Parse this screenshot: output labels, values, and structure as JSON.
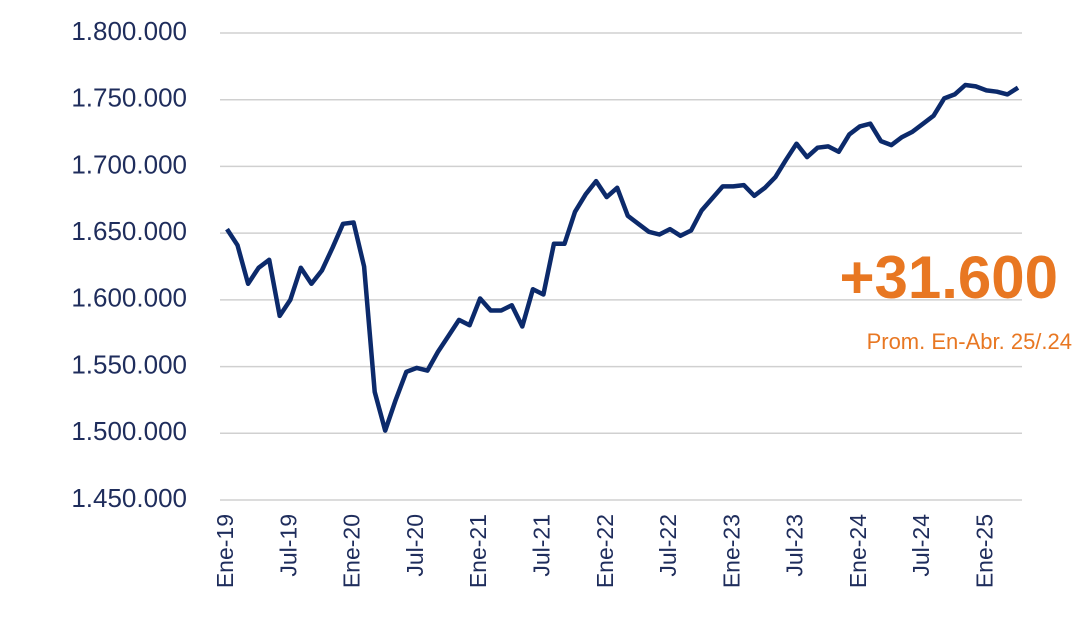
{
  "chart_data": {
    "type": "line",
    "categories": [
      "Ene-19",
      null,
      null,
      null,
      null,
      null,
      "Jul-19",
      null,
      null,
      null,
      null,
      null,
      "Ene-20",
      null,
      null,
      null,
      null,
      null,
      "Jul-20",
      null,
      null,
      null,
      null,
      null,
      "Ene-21",
      null,
      null,
      null,
      null,
      null,
      "Jul-21",
      null,
      null,
      null,
      null,
      null,
      "Ene-22",
      null,
      null,
      null,
      null,
      null,
      "Jul-22",
      null,
      null,
      null,
      null,
      null,
      "Ene-23",
      null,
      null,
      null,
      null,
      null,
      "Jul-23",
      null,
      null,
      null,
      null,
      null,
      "Ene-24",
      null,
      null,
      null,
      null,
      null,
      "Jul-24",
      null,
      null,
      null,
      null,
      null,
      "Ene-25",
      null,
      null,
      null
    ],
    "series": [
      {
        "name": null,
        "color": "#0c2a6b",
        "values": [
          1653000,
          1641000,
          1612000,
          1624000,
          1630000,
          1588000,
          1600000,
          1624000,
          1612000,
          1622000,
          1639000,
          1657000,
          1658000,
          1625000,
          1531000,
          1502000,
          1525000,
          1546000,
          1549000,
          1547000,
          1561000,
          1573000,
          1585000,
          1581000,
          1601000,
          1592000,
          1592000,
          1596000,
          1580000,
          1608000,
          1604000,
          1642000,
          1642000,
          1666000,
          1679000,
          1689000,
          1677000,
          1684000,
          1663000,
          1657000,
          1651000,
          1649000,
          1653000,
          1648000,
          1652000,
          1667000,
          1676000,
          1685000,
          1685000,
          1686000,
          1678000,
          1684000,
          1692000,
          1705000,
          1717000,
          1707000,
          1714000,
          1715000,
          1711000,
          1724000,
          1730000,
          1732000,
          1719000,
          1716000,
          1722000,
          1726000,
          1732000,
          1738000,
          1751000,
          1754000,
          1761000,
          1760000,
          1757000,
          1756000,
          1754000,
          1759000
        ]
      }
    ],
    "ylim": [
      1450000,
      1800000
    ],
    "yticks": [
      {
        "value": 1450000,
        "label": "1.450.000"
      },
      {
        "value": 1500000,
        "label": "1.500.000"
      },
      {
        "value": 1550000,
        "label": "1.550.000"
      },
      {
        "value": 1600000,
        "label": "1.600.000"
      },
      {
        "value": 1650000,
        "label": "1.650.000"
      },
      {
        "value": 1700000,
        "label": "1.700.000"
      },
      {
        "value": 1750000,
        "label": "1.750.000"
      },
      {
        "value": 1800000,
        "label": "1.800.000"
      }
    ],
    "grid": true,
    "annotations": [
      "+31.600",
      "Prom. En-Abr. 25/.24"
    ]
  }
}
